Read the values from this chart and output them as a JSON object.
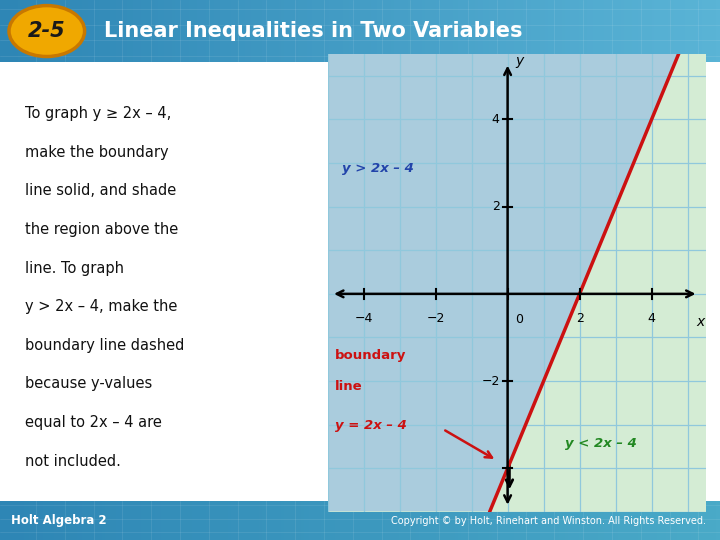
{
  "title": "Linear Inequalities in Two Variables",
  "lesson": "2-5",
  "header_bg": "#2e86b5",
  "header_bg2": "#5ab4d6",
  "header_text_color": "#ffffff",
  "badge_bg": "#f0a800",
  "badge_border": "#c87800",
  "badge_text_color": "#1a1a1a",
  "body_bg": "#ffffff",
  "graph_bg": "#c5e0ee",
  "grid_color": "#90c8dc",
  "shade_above_color": "#aaccdd",
  "shade_below_color": "#d4ecd4",
  "line_color": "#cc1111",
  "line_slope": 2,
  "line_intercept": -4,
  "xmin": -5,
  "xmax": 5.5,
  "ymin": -5,
  "ymax": 5.5,
  "xticks": [
    -4,
    -2,
    0,
    2,
    4
  ],
  "yticks": [
    -2,
    2,
    4
  ],
  "ylabel_above": "y > 2x – 4",
  "ylabel_above_color": "#2244aa",
  "ylabel_below": "y < 2x – 4",
  "ylabel_below_color": "#228822",
  "boundary_label_color": "#cc1111",
  "boundary_label_line1": "boundary",
  "boundary_label_line2": "line",
  "boundary_label_eq": "y = 2x – 4",
  "footer_left": "Holt Algebra 2",
  "footer_right": "Copyright © by Holt, Rinehart and Winston. All Rights Reserved.",
  "footer_bg": "#2e86b5",
  "body_text_color": "#111111",
  "body_text_mixed": [
    {
      "text": "To graph ",
      "style": "normal"
    },
    {
      "text": "y",
      "style": "italic"
    },
    {
      "text": " ≥ 2",
      "style": "normal"
    },
    {
      "text": "x",
      "style": "italic"
    },
    {
      "text": " – 4,",
      "style": "normal"
    }
  ]
}
